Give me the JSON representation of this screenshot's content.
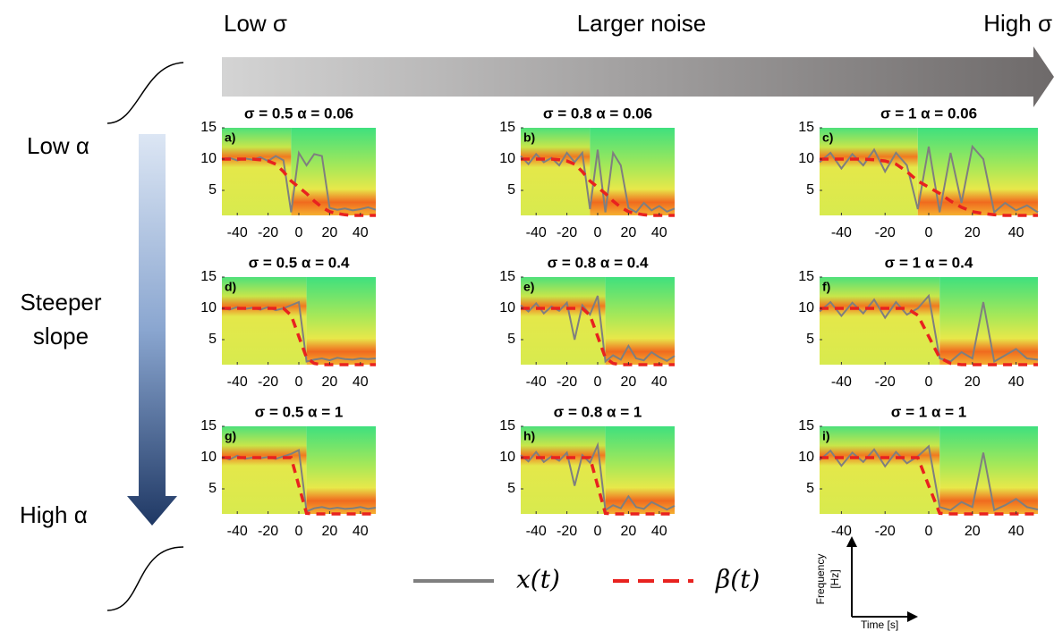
{
  "header": {
    "left": "Low σ",
    "center": "Larger noise",
    "right": "High σ"
  },
  "side": {
    "top": "Low α",
    "middle": [
      "Steeper",
      "slope"
    ],
    "bottom": "High α"
  },
  "legend": [
    {
      "name": "x(t)",
      "color": "#7f7f7f",
      "dashed": false
    },
    {
      "name": "β(t)",
      "color": "#e8221f",
      "dashed": true
    }
  ],
  "inset": {
    "y_label": [
      "Frequency",
      "[Hz]"
    ],
    "x_label": "Time [s]"
  },
  "chart_data": [
    {
      "type": "line",
      "title": "σ = 0.5 α = 0.06",
      "label": "a)",
      "x": [
        -50,
        -45,
        -40,
        -35,
        -30,
        -25,
        -20,
        -15,
        -10,
        -5,
        0,
        5,
        10,
        15,
        20,
        25,
        30,
        35,
        40,
        45,
        50
      ],
      "xlim": [
        -50,
        50
      ],
      "xticks": [
        -40,
        -20,
        0,
        20,
        40
      ],
      "ylim": [
        1,
        15
      ],
      "yticks": [
        5,
        10,
        15
      ],
      "series": [
        {
          "color": "#7f7f7f",
          "dashed": false,
          "values": [
            10,
            10.2,
            9.8,
            10.1,
            9.9,
            10.3,
            9.7,
            10.5,
            9.8,
            1.5,
            11,
            9,
            10.8,
            10.5,
            2.2,
            1.9,
            2.1,
            1.8,
            2,
            2.3,
            1.9
          ]
        },
        {
          "color": "#e8221f",
          "dashed": true,
          "values": [
            10,
            10,
            10,
            10,
            10,
            9.9,
            9.7,
            9.2,
            8,
            6.5,
            5.5,
            4.5,
            3.3,
            2.3,
            1.6,
            1.3,
            1.1,
            1,
            1,
            1,
            1
          ]
        }
      ]
    },
    {
      "type": "line",
      "title": "σ = 0.8 α = 0.06",
      "label": "b)",
      "x": [
        -50,
        -45,
        -40,
        -35,
        -30,
        -25,
        -20,
        -15,
        -10,
        -5,
        0,
        5,
        10,
        15,
        20,
        25,
        30,
        35,
        40,
        45,
        50
      ],
      "xlim": [
        -50,
        50
      ],
      "xticks": [
        -40,
        -20,
        0,
        20,
        40
      ],
      "ylim": [
        1,
        15
      ],
      "yticks": [
        5,
        10,
        15
      ],
      "series": [
        {
          "color": "#7f7f7f",
          "dashed": false,
          "values": [
            10.5,
            9.2,
            10.8,
            9.5,
            10.2,
            9,
            11,
            9.5,
            11,
            2,
            11.5,
            1.5,
            11,
            9,
            2.2,
            1.5,
            3,
            1.8,
            2.5,
            1.6,
            2.1
          ]
        },
        {
          "color": "#e8221f",
          "dashed": true,
          "values": [
            10,
            10,
            10,
            10,
            10,
            9.9,
            9.7,
            9.2,
            8,
            6.5,
            5.5,
            4.5,
            3.3,
            2.3,
            1.6,
            1.3,
            1.1,
            1,
            1,
            1,
            1
          ]
        }
      ]
    },
    {
      "type": "line",
      "title": "σ = 1 α = 0.06",
      "label": "c)",
      "x": [
        -50,
        -45,
        -40,
        -35,
        -30,
        -25,
        -20,
        -15,
        -10,
        -5,
        0,
        5,
        10,
        15,
        20,
        25,
        30,
        35,
        40,
        45,
        50
      ],
      "xlim": [
        -50,
        50
      ],
      "xticks": [
        -40,
        -20,
        0,
        20,
        40
      ],
      "ylim": [
        1,
        15
      ],
      "yticks": [
        5,
        10,
        15
      ],
      "series": [
        {
          "color": "#7f7f7f",
          "dashed": false,
          "values": [
            9.5,
            11,
            8.5,
            10.8,
            9,
            11.5,
            8,
            11,
            9,
            2,
            12,
            1.5,
            11,
            3,
            12,
            10,
            1.5,
            3,
            1.8,
            2.6,
            1.5
          ]
        },
        {
          "color": "#e8221f",
          "dashed": true,
          "values": [
            10,
            10,
            10,
            10,
            10,
            9.9,
            9.7,
            9.2,
            8,
            6.5,
            5.5,
            4.5,
            3.3,
            2.3,
            1.6,
            1.3,
            1.1,
            1,
            1,
            1,
            1
          ]
        }
      ]
    },
    {
      "type": "line",
      "title": "σ = 0.5 α = 0.4",
      "label": "d)",
      "x": [
        -50,
        -45,
        -40,
        -35,
        -30,
        -25,
        -20,
        -15,
        -10,
        -5,
        0,
        5,
        10,
        15,
        20,
        25,
        30,
        35,
        40,
        45,
        50
      ],
      "xlim": [
        -50,
        50
      ],
      "xticks": [
        -40,
        -20,
        0,
        20,
        40
      ],
      "ylim": [
        1,
        15
      ],
      "yticks": [
        5,
        10,
        15
      ],
      "series": [
        {
          "color": "#7f7f7f",
          "dashed": false,
          "values": [
            10,
            9.8,
            10.2,
            9.9,
            10.1,
            9.8,
            10.2,
            9.7,
            10,
            10.5,
            11,
            1.5,
            1.8,
            2,
            1.7,
            2.1,
            1.9,
            1.8,
            2,
            1.9,
            2
          ]
        },
        {
          "color": "#e8221f",
          "dashed": true,
          "values": [
            10,
            10,
            10,
            10,
            10,
            10,
            10,
            10,
            10,
            8.9,
            5.5,
            2.1,
            1.2,
            1,
            1,
            1,
            1,
            1,
            1,
            1,
            1
          ]
        }
      ]
    },
    {
      "type": "line",
      "title": "σ = 0.8 α = 0.4",
      "label": "e)",
      "x": [
        -50,
        -45,
        -40,
        -35,
        -30,
        -25,
        -20,
        -15,
        -10,
        -5,
        0,
        5,
        10,
        15,
        20,
        25,
        30,
        35,
        40,
        45,
        50
      ],
      "xlim": [
        -50,
        50
      ],
      "xticks": [
        -40,
        -20,
        0,
        20,
        40
      ],
      "ylim": [
        1,
        15
      ],
      "yticks": [
        5,
        10,
        15
      ],
      "series": [
        {
          "color": "#7f7f7f",
          "dashed": false,
          "values": [
            10.5,
            9.5,
            10.8,
            9.2,
            10.3,
            9.6,
            10.9,
            5,
            10.5,
            9,
            12,
            1.5,
            2.5,
            1.8,
            4,
            2,
            1.7,
            3,
            2.2,
            1.6,
            2.4
          ]
        },
        {
          "color": "#e8221f",
          "dashed": true,
          "values": [
            10,
            10,
            10,
            10,
            10,
            10,
            10,
            10,
            10,
            8.9,
            5.5,
            2.1,
            1.2,
            1,
            1,
            1,
            1,
            1,
            1,
            1,
            1
          ]
        }
      ]
    },
    {
      "type": "line",
      "title": "σ = 1 α = 0.4",
      "label": "f)",
      "x": [
        -50,
        -45,
        -40,
        -35,
        -30,
        -25,
        -20,
        -15,
        -10,
        -5,
        0,
        5,
        10,
        15,
        20,
        25,
        30,
        35,
        40,
        45,
        50
      ],
      "xlim": [
        -50,
        50
      ],
      "xticks": [
        -40,
        -20,
        0,
        20,
        40
      ],
      "ylim": [
        1,
        15
      ],
      "yticks": [
        5,
        10,
        15
      ],
      "series": [
        {
          "color": "#7f7f7f",
          "dashed": false,
          "values": [
            9.5,
            11,
            8.8,
            10.9,
            9.2,
            11.4,
            8.5,
            11,
            9,
            10,
            12,
            2,
            1.5,
            3,
            2,
            11,
            1.5,
            2.5,
            3.5,
            2,
            1.8
          ]
        },
        {
          "color": "#e8221f",
          "dashed": true,
          "values": [
            10,
            10,
            10,
            10,
            10,
            10,
            10,
            10,
            10,
            8.9,
            5.5,
            2.1,
            1.2,
            1,
            1,
            1,
            1,
            1,
            1,
            1,
            1
          ]
        }
      ]
    },
    {
      "type": "line",
      "title": "σ = 0.5 α = 1",
      "label": "g)",
      "x": [
        -50,
        -45,
        -40,
        -35,
        -30,
        -25,
        -20,
        -15,
        -10,
        -5,
        0,
        5,
        10,
        15,
        20,
        25,
        30,
        35,
        40,
        45,
        50
      ],
      "xlim": [
        -50,
        50
      ],
      "xticks": [
        -40,
        -20,
        0,
        20,
        40
      ],
      "ylim": [
        1,
        15
      ],
      "yticks": [
        5,
        10,
        15
      ],
      "series": [
        {
          "color": "#7f7f7f",
          "dashed": false,
          "values": [
            10.1,
            9.7,
            10.3,
            9.8,
            10,
            9.9,
            10.1,
            9.8,
            10.2,
            10.6,
            11.2,
            1.4,
            1.9,
            2.1,
            1.8,
            2,
            1.8,
            1.9,
            2.1,
            1.8,
            2
          ]
        },
        {
          "color": "#e8221f",
          "dashed": true,
          "values": [
            10,
            10,
            10,
            10,
            10,
            10,
            10,
            10,
            10,
            10,
            5.5,
            1.1,
            1,
            1,
            1,
            1,
            1,
            1,
            1,
            1,
            1
          ]
        }
      ]
    },
    {
      "type": "line",
      "title": "σ = 0.8 α = 1",
      "label": "h)",
      "x": [
        -50,
        -45,
        -40,
        -35,
        -30,
        -25,
        -20,
        -15,
        -10,
        -5,
        0,
        5,
        10,
        15,
        20,
        25,
        30,
        35,
        40,
        45,
        50
      ],
      "xlim": [
        -50,
        50
      ],
      "xticks": [
        -40,
        -20,
        0,
        20,
        40
      ],
      "ylim": [
        1,
        15
      ],
      "yticks": [
        5,
        10,
        15
      ],
      "series": [
        {
          "color": "#7f7f7f",
          "dashed": false,
          "values": [
            10.4,
            9.4,
            10.9,
            9.3,
            10.2,
            9.5,
            10.8,
            5.5,
            10.4,
            9.2,
            12,
            1.6,
            2.4,
            1.9,
            3.8,
            2.1,
            1.8,
            2.9,
            2.3,
            1.7,
            2.3
          ]
        },
        {
          "color": "#e8221f",
          "dashed": true,
          "values": [
            10,
            10,
            10,
            10,
            10,
            10,
            10,
            10,
            10,
            10,
            5.5,
            1.1,
            1,
            1,
            1,
            1,
            1,
            1,
            1,
            1,
            1
          ]
        }
      ]
    },
    {
      "type": "line",
      "title": "σ = 1 α = 1",
      "label": "i)",
      "x": [
        -50,
        -45,
        -40,
        -35,
        -30,
        -25,
        -20,
        -15,
        -10,
        -5,
        0,
        5,
        10,
        15,
        20,
        25,
        30,
        35,
        40,
        45,
        50
      ],
      "xlim": [
        -50,
        50
      ],
      "xticks": [
        -40,
        -20,
        0,
        20,
        40
      ],
      "ylim": [
        1,
        15
      ],
      "yticks": [
        5,
        10,
        15
      ],
      "series": [
        {
          "color": "#7f7f7f",
          "dashed": false,
          "values": [
            9.6,
            11.1,
            8.7,
            10.8,
            9.3,
            11.3,
            8.6,
            10.9,
            9.1,
            10.2,
            11.8,
            2.1,
            1.6,
            2.9,
            2.1,
            10.8,
            1.6,
            2.4,
            3.4,
            2.1,
            1.7
          ]
        },
        {
          "color": "#e8221f",
          "dashed": true,
          "values": [
            10,
            10,
            10,
            10,
            10,
            10,
            10,
            10,
            10,
            10,
            5.5,
            1.1,
            1,
            1,
            1,
            1,
            1,
            1,
            1,
            1,
            1
          ]
        }
      ]
    }
  ]
}
